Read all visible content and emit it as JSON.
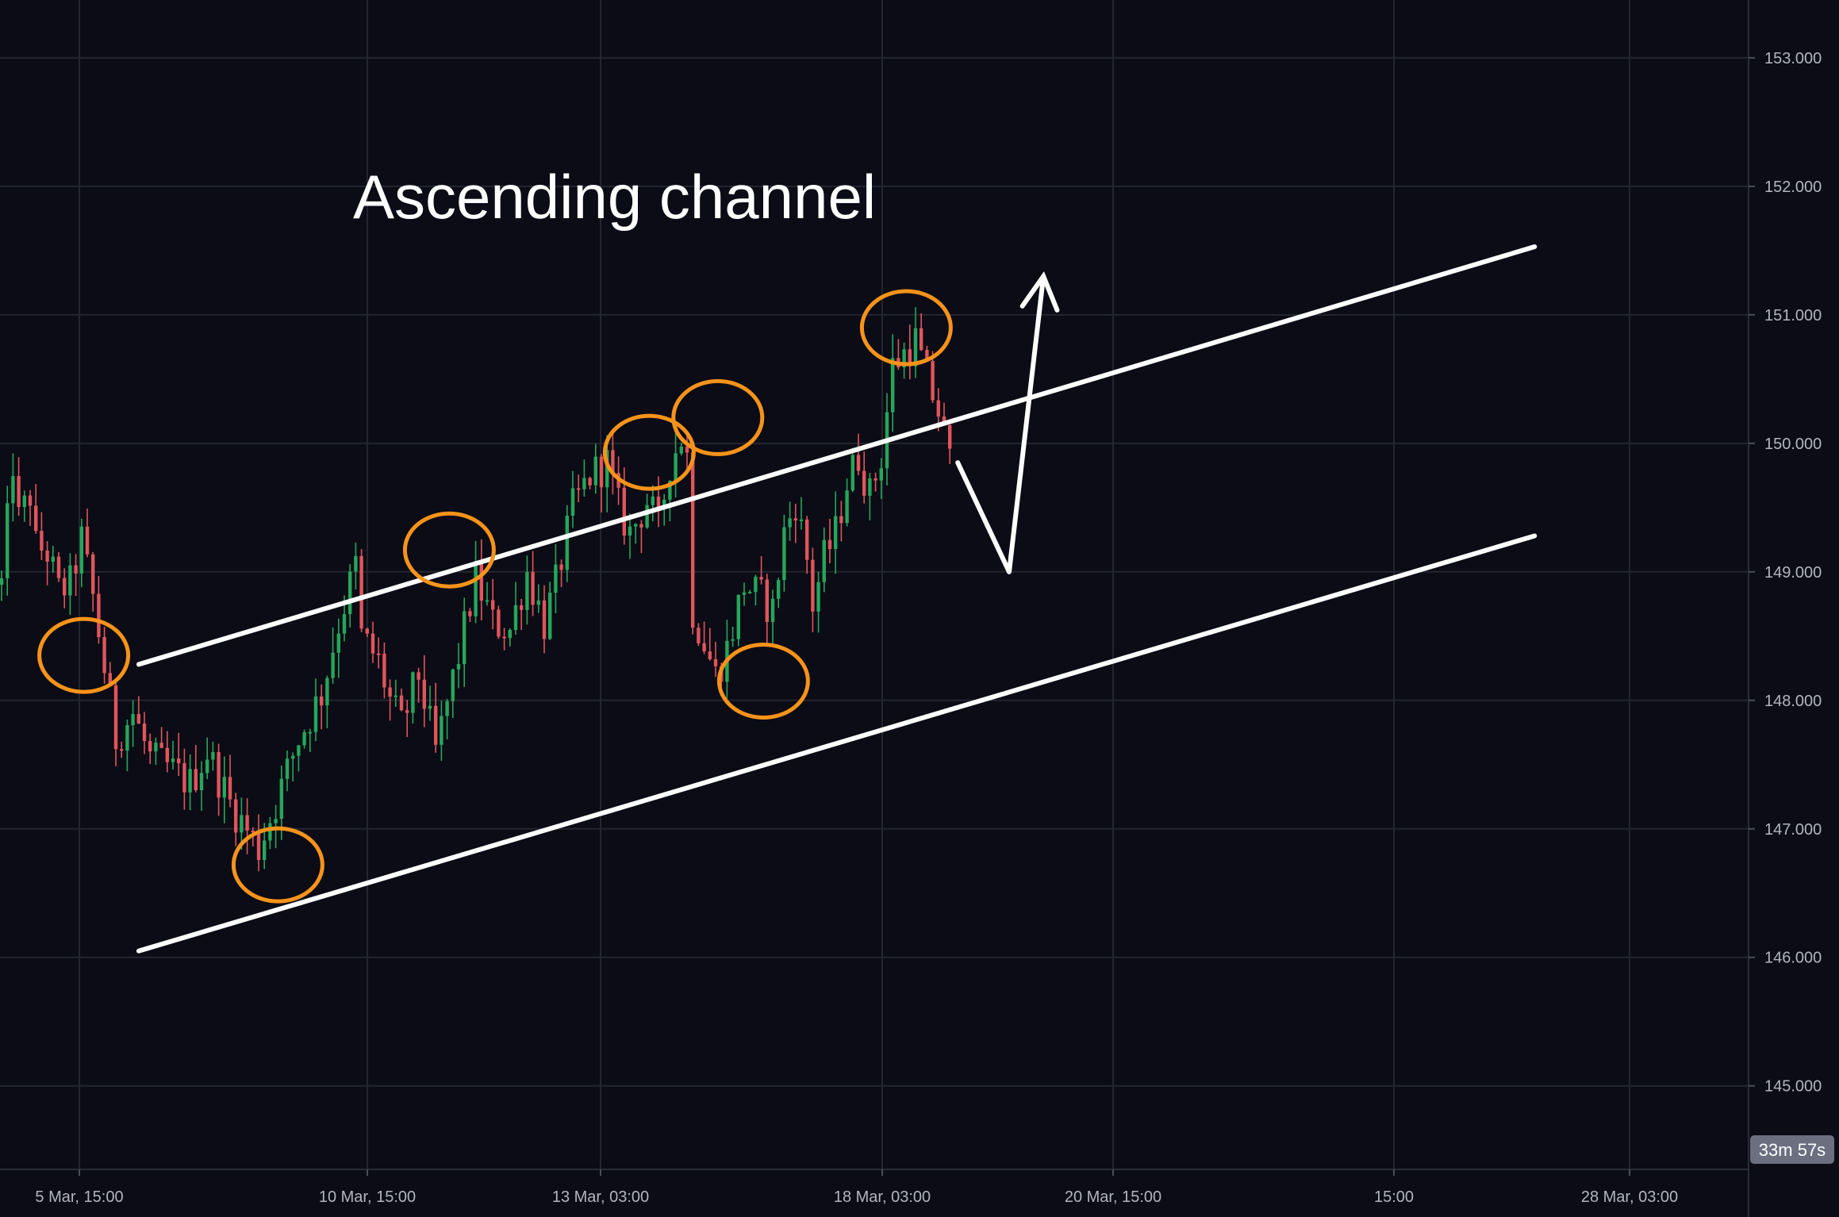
{
  "chart_data": {
    "type": "candlestick",
    "title": "Ascending channel",
    "instrument": "",
    "ylim": [
      144.35,
      153.45
    ],
    "y_ticks": [
      145.0,
      146.0,
      147.0,
      148.0,
      149.0,
      150.0,
      151.0,
      152.0,
      153.0
    ],
    "y_tick_labels": [
      "145.000",
      "146.000",
      "147.000",
      "148.000",
      "149.000",
      "150.000",
      "151.000",
      "152.000",
      "153.000"
    ],
    "x_tick_labels": [
      "5 Mar, 15:00",
      "10 Mar, 15:00",
      "13 Mar, 03:00",
      "18 Mar, 03:00",
      "20 Mar, 15:00",
      "15:00",
      "28 Mar, 03:00"
    ],
    "countdown_label": "33m 57s",
    "grid": true,
    "colors": {
      "background": "#0b0c16",
      "grid": "#23252f",
      "up": "#26a65b",
      "down": "#e0555c",
      "channel": "#ffffff",
      "highlight": "#f7931a",
      "countdown_bg": "#6b6f80"
    },
    "price_path": [
      [
        0,
        148.9
      ],
      [
        2,
        149.85
      ],
      [
        3,
        149.4
      ],
      [
        5,
        149.6
      ],
      [
        6,
        149.2
      ],
      [
        8,
        149.15
      ],
      [
        10,
        148.85
      ],
      [
        12,
        148.9
      ],
      [
        14,
        149.25
      ],
      [
        16,
        148.8
      ],
      [
        20,
        147.7
      ],
      [
        23,
        147.9
      ],
      [
        26,
        147.55
      ],
      [
        30,
        147.45
      ],
      [
        33,
        147.35
      ],
      [
        36,
        147.6
      ],
      [
        40,
        147.2
      ],
      [
        45,
        146.85
      ],
      [
        48,
        147.2
      ],
      [
        52,
        147.7
      ],
      [
        56,
        148.05
      ],
      [
        59,
        148.6
      ],
      [
        62,
        149.05
      ],
      [
        63,
        148.5
      ],
      [
        66,
        148.3
      ],
      [
        68,
        148.0
      ],
      [
        70,
        147.8
      ],
      [
        73,
        148.2
      ],
      [
        76,
        147.6
      ],
      [
        80,
        148.35
      ],
      [
        83,
        148.95
      ],
      [
        86,
        148.6
      ],
      [
        89,
        148.55
      ],
      [
        92,
        149.0
      ],
      [
        95,
        148.6
      ],
      [
        97,
        148.9
      ],
      [
        100,
        149.5
      ],
      [
        103,
        149.75
      ],
      [
        106,
        149.85
      ],
      [
        108,
        149.5
      ],
      [
        110,
        149.3
      ],
      [
        113,
        149.55
      ],
      [
        115,
        149.35
      ],
      [
        117,
        149.85
      ],
      [
        119,
        150.05
      ],
      [
        120,
        149.9
      ],
      [
        121,
        148.7
      ],
      [
        123,
        148.45
      ],
      [
        125,
        148.2
      ],
      [
        127,
        148.4
      ],
      [
        130,
        148.9
      ],
      [
        133,
        148.8
      ],
      [
        135,
        148.7
      ],
      [
        137,
        149.3
      ],
      [
        139,
        149.55
      ],
      [
        141,
        149.1
      ],
      [
        142,
        148.75
      ],
      [
        144,
        149.1
      ],
      [
        146,
        149.3
      ],
      [
        148,
        149.7
      ],
      [
        150,
        149.9
      ],
      [
        152,
        149.6
      ],
      [
        154,
        149.9
      ],
      [
        156,
        150.6
      ],
      [
        158,
        150.7
      ],
      [
        160,
        150.8
      ],
      [
        162,
        150.5
      ],
      [
        164,
        150.25
      ],
      [
        166,
        149.85
      ]
    ],
    "channel_lines": [
      {
        "name": "",
        "from": [
          0,
          148.28
        ],
        "to": [
          218,
          151.53
        ]
      },
      {
        "name": "",
        "from": [
          0,
          146.05
        ],
        "to": [
          218,
          149.28
        ]
      }
    ],
    "projection": [
      [
        166,
        149.85
      ],
      [
        175,
        149.0
      ],
      [
        181,
        151.3
      ]
    ],
    "highlights": [
      [
        13,
        148.35
      ],
      [
        47,
        146.72
      ],
      [
        77,
        149.17
      ],
      [
        112,
        149.93
      ],
      [
        124,
        150.2
      ],
      [
        132,
        148.15
      ],
      [
        157,
        150.9
      ]
    ]
  }
}
